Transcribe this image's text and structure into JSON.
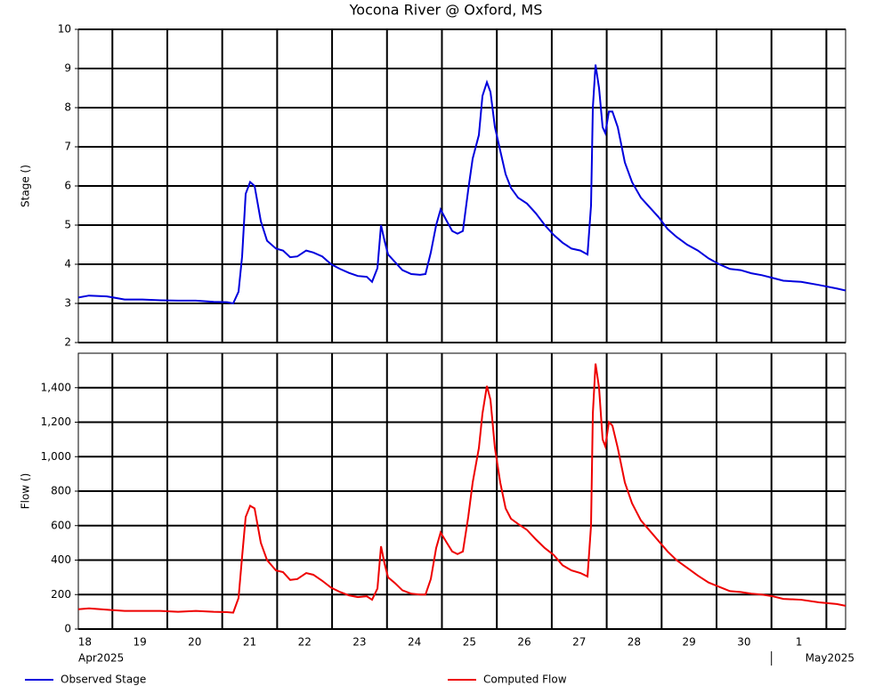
{
  "chart_data": [
    {
      "type": "line",
      "title": "Yocona River @ Oxford, MS",
      "ylabel": "Stage ()",
      "x": [
        0.38,
        0.574,
        0.899,
        1.223,
        1.547,
        1.871,
        2.195,
        2.519,
        2.844,
        3.087,
        3.2,
        3.297,
        3.362,
        3.427,
        3.508,
        3.589,
        3.703,
        3.816,
        3.978,
        4.108,
        4.237,
        4.367,
        4.529,
        4.659,
        4.821,
        4.983,
        5.145,
        5.307,
        5.469,
        5.631,
        5.728,
        5.826,
        5.891,
        5.955,
        6.02,
        6.15,
        6.28,
        6.442,
        6.604,
        6.701,
        6.798,
        6.895,
        6.976,
        7.09,
        7.187,
        7.284,
        7.382,
        7.479,
        7.56,
        7.673,
        7.738,
        7.819,
        7.884,
        7.965,
        8.062,
        8.16,
        8.257,
        8.386,
        8.549,
        8.711,
        8.873,
        9.035,
        9.197,
        9.359,
        9.521,
        9.651,
        9.715,
        9.748,
        9.797,
        9.861,
        9.926,
        9.975,
        10.04,
        10.104,
        10.202,
        10.331,
        10.461,
        10.623,
        10.785,
        10.947,
        11.109,
        11.271,
        11.466,
        11.66,
        11.855,
        12.049,
        12.244,
        12.438,
        12.633,
        12.827,
        13.022,
        13.216,
        13.54,
        13.865,
        14.189,
        14.35
      ],
      "series": [
        {
          "name": "Observed Stage",
          "color": "#0000dd",
          "values": [
            3.15,
            3.2,
            3.18,
            3.1,
            3.1,
            3.08,
            3.07,
            3.07,
            3.04,
            3.03,
            3.0,
            3.3,
            4.2,
            5.8,
            6.1,
            6.0,
            5.1,
            4.6,
            4.4,
            4.35,
            4.18,
            4.2,
            4.35,
            4.3,
            4.2,
            4.0,
            3.88,
            3.78,
            3.7,
            3.68,
            3.55,
            3.9,
            5.0,
            4.6,
            4.25,
            4.05,
            3.85,
            3.75,
            3.73,
            3.75,
            4.3,
            5.0,
            5.4,
            5.1,
            4.85,
            4.78,
            4.85,
            5.9,
            6.7,
            7.3,
            8.3,
            8.65,
            8.4,
            7.5,
            6.9,
            6.3,
            5.95,
            5.7,
            5.55,
            5.3,
            5.0,
            4.75,
            4.55,
            4.4,
            4.35,
            4.25,
            5.5,
            8.0,
            9.1,
            8.5,
            7.5,
            7.35,
            7.9,
            7.9,
            7.5,
            6.6,
            6.1,
            5.7,
            5.45,
            5.2,
            4.9,
            4.7,
            4.5,
            4.35,
            4.15,
            4.0,
            3.88,
            3.85,
            3.77,
            3.72,
            3.65,
            3.58,
            3.55,
            3.47,
            3.38,
            3.33
          ]
        }
      ],
      "xlim": [
        0.38,
        14.35
      ],
      "xgrid": [
        1,
        2,
        3,
        4,
        5,
        6,
        7,
        8,
        9,
        10,
        11,
        12,
        13,
        14
      ],
      "ylim": [
        2,
        10
      ],
      "yticks": [
        2,
        3,
        4,
        5,
        6,
        7,
        8,
        9,
        10
      ],
      "grid": true
    },
    {
      "type": "line",
      "ylabel": "Flow ()",
      "x": [
        0.38,
        0.574,
        0.899,
        1.223,
        1.547,
        1.871,
        2.195,
        2.519,
        2.844,
        3.087,
        3.2,
        3.297,
        3.362,
        3.427,
        3.508,
        3.589,
        3.703,
        3.816,
        3.978,
        4.108,
        4.237,
        4.367,
        4.529,
        4.659,
        4.821,
        4.983,
        5.145,
        5.307,
        5.469,
        5.631,
        5.728,
        5.826,
        5.891,
        5.955,
        6.02,
        6.15,
        6.28,
        6.442,
        6.604,
        6.701,
        6.798,
        6.895,
        6.976,
        7.09,
        7.187,
        7.284,
        7.382,
        7.479,
        7.56,
        7.673,
        7.738,
        7.819,
        7.884,
        7.965,
        8.062,
        8.16,
        8.257,
        8.386,
        8.549,
        8.711,
        8.873,
        9.035,
        9.197,
        9.359,
        9.521,
        9.651,
        9.715,
        9.748,
        9.797,
        9.861,
        9.926,
        9.975,
        10.04,
        10.104,
        10.202,
        10.331,
        10.461,
        10.623,
        10.785,
        10.947,
        11.109,
        11.271,
        11.466,
        11.66,
        11.855,
        12.049,
        12.244,
        12.438,
        12.633,
        12.827,
        13.022,
        13.216,
        13.54,
        13.865,
        14.189,
        14.35
      ],
      "series": [
        {
          "name": "Computed Flow",
          "color": "#ee0000",
          "values": [
            115,
            120,
            112,
            105,
            105,
            105,
            100,
            105,
            100,
            98,
            95,
            180,
            420,
            650,
            715,
            700,
            500,
            400,
            340,
            330,
            285,
            290,
            325,
            315,
            280,
            240,
            215,
            195,
            185,
            190,
            170,
            235,
            480,
            380,
            300,
            265,
            225,
            205,
            200,
            200,
            290,
            470,
            560,
            500,
            450,
            435,
            450,
            650,
            850,
            1050,
            1250,
            1410,
            1330,
            1050,
            850,
            700,
            640,
            610,
            575,
            520,
            470,
            430,
            370,
            340,
            325,
            305,
            600,
            1250,
            1540,
            1400,
            1100,
            1060,
            1200,
            1180,
            1050,
            850,
            730,
            630,
            570,
            510,
            450,
            400,
            355,
            310,
            270,
            245,
            220,
            215,
            205,
            200,
            190,
            175,
            170,
            155,
            145,
            135
          ]
        }
      ],
      "xlim": [
        0.38,
        14.35
      ],
      "xgrid": [
        1,
        2,
        3,
        4,
        5,
        6,
        7,
        8,
        9,
        10,
        11,
        12,
        13,
        14
      ],
      "xticks": [
        {
          "value": 0.5,
          "label": "18"
        },
        {
          "value": 1.5,
          "label": "19"
        },
        {
          "value": 2.5,
          "label": "20"
        },
        {
          "value": 3.5,
          "label": "21"
        },
        {
          "value": 4.5,
          "label": "22"
        },
        {
          "value": 5.5,
          "label": "23"
        },
        {
          "value": 6.5,
          "label": "24"
        },
        {
          "value": 7.5,
          "label": "25"
        },
        {
          "value": 8.5,
          "label": "26"
        },
        {
          "value": 9.5,
          "label": "27"
        },
        {
          "value": 10.5,
          "label": "28"
        },
        {
          "value": 11.5,
          "label": "29"
        },
        {
          "value": 12.5,
          "label": "30"
        },
        {
          "value": 13.5,
          "label": "1"
        }
      ],
      "months": [
        {
          "value": 0.38,
          "label": "Apr2025"
        },
        {
          "value": 13,
          "label": "May2025"
        }
      ],
      "ylim": [
        0,
        1600
      ],
      "yticks": [
        0,
        {
          "value": 200,
          "label": "200"
        },
        {
          "value": 400,
          "label": "400"
        },
        {
          "value": 600,
          "label": "600"
        },
        {
          "value": 800,
          "label": "800"
        },
        {
          "value": 1000,
          "label": "1,000"
        },
        {
          "value": 1200,
          "label": "1,200"
        },
        {
          "value": 1400,
          "label": "1,400"
        }
      ],
      "grid": true
    }
  ]
}
